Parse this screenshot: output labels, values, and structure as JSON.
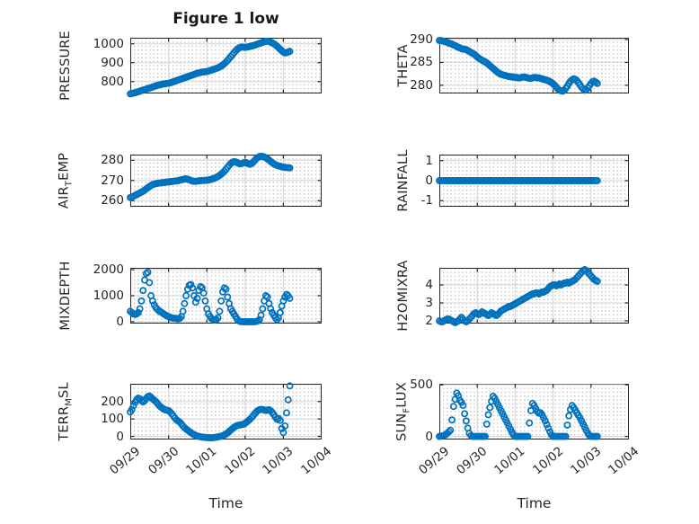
{
  "figure": {
    "title": "Figure 1 low",
    "background": "#ffffff",
    "accent_color": "#0072BD"
  },
  "x_axis": {
    "label": "Time",
    "tick_labels": [
      "09/29",
      "09/30",
      "10/01",
      "10/02",
      "10/03",
      "10/04"
    ]
  },
  "chart_data": [
    {
      "type": "scatter",
      "marker": "open-circle",
      "color": "#0072BD",
      "id": "pressure",
      "row": 0,
      "col": 0,
      "ylabel_parts": [
        {
          "t": "PRESSURE"
        }
      ],
      "yticks": [
        800,
        900,
        1000
      ],
      "ylim": [
        737,
        1032
      ],
      "xlim_days": [
        0,
        5
      ],
      "x_start_day": 0,
      "x_step_days": 0.0416667,
      "values": [
        735,
        737,
        739,
        741,
        744,
        746,
        749,
        752,
        755,
        757,
        760,
        763,
        766,
        768,
        771,
        774,
        777,
        780,
        782,
        784,
        786,
        788,
        789,
        790,
        791,
        793,
        796,
        799,
        802,
        805,
        808,
        811,
        814,
        817,
        820,
        823,
        826,
        829,
        832,
        835,
        838,
        841,
        844,
        846,
        848,
        850,
        851,
        852,
        853,
        855,
        858,
        861,
        864,
        867,
        870,
        873,
        877,
        882,
        888,
        895,
        903,
        912,
        922,
        932,
        942,
        952,
        962,
        970,
        977,
        981,
        983,
        982,
        981,
        982,
        984,
        986,
        988,
        990,
        993,
        996,
        999,
        1002,
        1005,
        1008,
        1011,
        1013,
        1014,
        1012,
        1009,
        1005,
        1000,
        994,
        987,
        979,
        971,
        963,
        956,
        952,
        953,
        956,
        960
      ]
    },
    {
      "type": "scatter",
      "marker": "open-circle",
      "color": "#0072BD",
      "id": "theta",
      "row": 0,
      "col": 1,
      "ylabel_parts": [
        {
          "t": "THETA"
        }
      ],
      "yticks": [
        280,
        285,
        290
      ],
      "ylim": [
        278.2,
        290.4
      ],
      "xlim_days": [
        0,
        5
      ],
      "x_start_day": 0,
      "x_step_days": 0.0416667,
      "values": [
        289.8,
        289.8,
        289.7,
        289.6,
        289.5,
        289.4,
        289.2,
        289.1,
        289.0,
        288.8,
        288.7,
        288.5,
        288.3,
        288.2,
        288.0,
        287.9,
        287.9,
        287.8,
        287.6,
        287.4,
        287.2,
        287.0,
        286.8,
        286.5,
        286.2,
        285.9,
        285.7,
        285.5,
        285.3,
        285.1,
        284.9,
        284.6,
        284.3,
        284.0,
        283.7,
        283.4,
        283.1,
        282.8,
        282.6,
        282.4,
        282.3,
        282.2,
        282.1,
        282.0,
        281.9,
        281.9,
        281.8,
        281.8,
        281.7,
        281.7,
        281.6,
        281.6,
        281.7,
        281.8,
        281.8,
        281.7,
        281.6,
        281.5,
        281.5,
        281.6,
        281.7,
        281.7,
        281.6,
        281.6,
        281.5,
        281.4,
        281.3,
        281.2,
        281.1,
        281.0,
        280.8,
        280.6,
        280.3,
        280.0,
        279.6,
        279.2,
        278.9,
        278.8,
        278.7,
        278.9,
        279.3,
        279.8,
        280.4,
        280.9,
        281.2,
        281.4,
        281.3,
        281.0,
        280.6,
        280.1,
        279.6,
        279.2,
        278.9,
        279.0,
        279.4,
        279.9,
        280.4,
        280.8,
        280.9,
        280.7,
        280.4
      ]
    },
    {
      "type": "scatter",
      "marker": "open-circle",
      "color": "#0072BD",
      "id": "air_temp",
      "row": 1,
      "col": 0,
      "ylabel_parts": [
        {
          "t": "AIR"
        },
        {
          "t": "T",
          "sub": true
        },
        {
          "t": "EMP"
        }
      ],
      "yticks": [
        260,
        270,
        280
      ],
      "ylim": [
        257,
        282.8
      ],
      "xlim_days": [
        0,
        5
      ],
      "x_start_day": 0,
      "x_step_days": 0.0416667,
      "values": [
        261.5,
        261.8,
        262.2,
        262.6,
        263.0,
        263.4,
        263.8,
        264.2,
        264.7,
        265.2,
        265.8,
        266.4,
        267.0,
        267.5,
        267.9,
        268.2,
        268.4,
        268.6,
        268.7,
        268.8,
        268.9,
        269.0,
        269.1,
        269.2,
        269.3,
        269.4,
        269.5,
        269.6,
        269.7,
        269.8,
        269.9,
        270.1,
        270.3,
        270.5,
        270.7,
        270.8,
        270.6,
        270.3,
        270.0,
        269.7,
        269.6,
        269.6,
        269.7,
        269.8,
        269.9,
        270.0,
        270.0,
        270.1,
        270.1,
        270.2,
        270.4,
        270.6,
        270.9,
        271.2,
        271.6,
        272.0,
        272.5,
        273.1,
        273.8,
        274.6,
        275.5,
        276.5,
        277.5,
        278.4,
        279.0,
        279.3,
        279.2,
        278.8,
        278.4,
        278.2,
        278.4,
        278.7,
        278.9,
        278.7,
        278.3,
        278.0,
        278.3,
        279.0,
        279.9,
        280.8,
        281.4,
        281.8,
        282.0,
        281.9,
        281.6,
        281.2,
        280.7,
        280.1,
        279.4,
        278.8,
        278.2,
        277.8,
        277.5,
        277.2,
        277.0,
        276.8,
        276.6,
        276.5,
        276.4,
        276.3,
        276.2
      ]
    },
    {
      "type": "scatter",
      "marker": "open-circle",
      "color": "#0072BD",
      "id": "rainfall",
      "row": 1,
      "col": 1,
      "ylabel_parts": [
        {
          "t": "RAINFALL"
        }
      ],
      "yticks": [
        -1,
        0,
        1
      ],
      "ylim": [
        -1.3,
        1.3
      ],
      "xlim_days": [
        0,
        5
      ],
      "x_start_day": 0,
      "x_step_days": 0.0416667,
      "values": [
        0,
        0,
        0,
        0,
        0,
        0,
        0,
        0,
        0,
        0,
        0,
        0,
        0,
        0,
        0,
        0,
        0,
        0,
        0,
        0,
        0,
        0,
        0,
        0,
        0,
        0,
        0,
        0,
        0,
        0,
        0,
        0,
        0,
        0,
        0,
        0,
        0,
        0,
        0,
        0,
        0,
        0,
        0,
        0,
        0,
        0,
        0,
        0,
        0,
        0,
        0,
        0,
        0,
        0,
        0,
        0,
        0,
        0,
        0,
        0,
        0,
        0,
        0,
        0,
        0,
        0,
        0,
        0,
        0,
        0,
        0,
        0,
        0,
        0,
        0,
        0,
        0,
        0,
        0,
        0,
        0,
        0,
        0,
        0,
        0,
        0,
        0,
        0,
        0,
        0,
        0,
        0,
        0,
        0,
        0,
        0,
        0,
        0,
        0,
        0,
        0
      ]
    },
    {
      "type": "scatter",
      "marker": "open-circle",
      "color": "#0072BD",
      "id": "mixdepth",
      "row": 2,
      "col": 0,
      "ylabel_parts": [
        {
          "t": "MIXDEPTH"
        }
      ],
      "yticks": [
        0,
        1000,
        2000
      ],
      "ylim": [
        -70,
        2070
      ],
      "xlim_days": [
        0,
        5
      ],
      "x_start_day": 0,
      "x_step_days": 0.0416667,
      "values": [
        400,
        350,
        300,
        280,
        300,
        350,
        500,
        800,
        1200,
        1600,
        1850,
        1900,
        1500,
        1000,
        800,
        650,
        550,
        480,
        420,
        380,
        340,
        300,
        260,
        220,
        200,
        170,
        150,
        140,
        130,
        120,
        110,
        130,
        200,
        400,
        700,
        1000,
        1250,
        1400,
        1430,
        1300,
        1000,
        750,
        900,
        1200,
        1350,
        1300,
        1100,
        800,
        500,
        300,
        200,
        120,
        80,
        60,
        80,
        150,
        400,
        800,
        1150,
        1300,
        1250,
        950,
        700,
        500,
        400,
        300,
        200,
        100,
        40,
        10,
        0,
        0,
        0,
        0,
        0,
        0,
        0,
        0,
        0,
        10,
        30,
        80,
        250,
        500,
        800,
        1000,
        950,
        700,
        500,
        350,
        250,
        150,
        80,
        150,
        350,
        600,
        800,
        950,
        1050,
        1000,
        900
      ]
    },
    {
      "type": "scatter",
      "marker": "open-circle",
      "color": "#0072BD",
      "id": "h2omixra",
      "row": 2,
      "col": 1,
      "ylabel_parts": [
        {
          "t": "H2OMIXRA"
        }
      ],
      "yticks": [
        2,
        3,
        4
      ],
      "ylim": [
        1.85,
        4.95
      ],
      "xlim_days": [
        0,
        5
      ],
      "x_start_day": 0,
      "x_step_days": 0.0416667,
      "values": [
        2.0,
        1.95,
        1.95,
        2.0,
        2.05,
        2.1,
        2.1,
        2.05,
        2.0,
        1.95,
        1.9,
        1.95,
        2.0,
        2.1,
        2.2,
        2.1,
        2.0,
        1.95,
        2.0,
        2.1,
        2.2,
        2.3,
        2.4,
        2.45,
        2.4,
        2.35,
        2.4,
        2.5,
        2.45,
        2.4,
        2.35,
        2.3,
        2.35,
        2.45,
        2.4,
        2.35,
        2.3,
        2.35,
        2.45,
        2.55,
        2.6,
        2.65,
        2.7,
        2.75,
        2.8,
        2.8,
        2.85,
        2.9,
        2.95,
        3.0,
        3.05,
        3.1,
        3.15,
        3.2,
        3.25,
        3.3,
        3.35,
        3.4,
        3.45,
        3.5,
        3.5,
        3.55,
        3.55,
        3.5,
        3.55,
        3.6,
        3.6,
        3.65,
        3.7,
        3.8,
        3.9,
        3.95,
        4.0,
        4.0,
        3.95,
        4.0,
        4.05,
        4.0,
        4.05,
        4.1,
        4.1,
        4.15,
        4.1,
        4.15,
        4.2,
        4.25,
        4.3,
        4.4,
        4.5,
        4.6,
        4.7,
        4.8,
        4.85,
        4.8,
        4.7,
        4.6,
        4.5,
        4.4,
        4.3,
        4.25,
        4.2
      ]
    },
    {
      "type": "scatter",
      "marker": "open-circle",
      "color": "#0072BD",
      "id": "terr_msl",
      "row": 3,
      "col": 0,
      "ylabel_parts": [
        {
          "t": "TERR"
        },
        {
          "t": "M",
          "sub": true
        },
        {
          "t": "SL"
        }
      ],
      "yticks": [
        0,
        100,
        200
      ],
      "ylim": [
        -18,
        302
      ],
      "xlim_days": [
        0,
        5
      ],
      "x_start_day": 0,
      "x_step_days": 0.0416667,
      "values": [
        140,
        155,
        175,
        195,
        210,
        220,
        215,
        205,
        198,
        205,
        218,
        228,
        232,
        225,
        215,
        208,
        200,
        190,
        178,
        170,
        163,
        157,
        152,
        150,
        148,
        140,
        130,
        118,
        105,
        95,
        88,
        82,
        72,
        60,
        50,
        42,
        35,
        28,
        22,
        15,
        10,
        5,
        2,
        0,
        -2,
        -4,
        -5,
        -6,
        -7,
        -7,
        -8,
        -8,
        -7,
        -6,
        -5,
        -3,
        -1,
        1,
        4,
        8,
        14,
        20,
        28,
        36,
        44,
        52,
        58,
        62,
        64,
        66,
        68,
        70,
        75,
        82,
        90,
        98,
        108,
        118,
        130,
        140,
        148,
        153,
        155,
        154,
        151,
        149,
        151,
        153,
        147,
        138,
        125,
        110,
        98,
        103,
        92,
        45,
        22,
        60,
        135,
        210,
        290
      ]
    },
    {
      "type": "scatter",
      "marker": "open-circle",
      "color": "#0072BD",
      "id": "sun_flux",
      "row": 3,
      "col": 1,
      "ylabel_parts": [
        {
          "t": "SUN"
        },
        {
          "t": "F",
          "sub": true
        },
        {
          "t": "LUX"
        }
      ],
      "yticks": [
        0,
        500
      ],
      "ylim": [
        -30,
        510
      ],
      "xlim_days": [
        0,
        5
      ],
      "x_start_day": 0,
      "x_step_days": 0.0416667,
      "values": [
        0,
        2,
        5,
        10,
        18,
        30,
        45,
        60,
        160,
        290,
        360,
        420,
        395,
        350,
        330,
        300,
        220,
        150,
        80,
        30,
        8,
        0,
        0,
        0,
        0,
        0,
        0,
        0,
        0,
        0,
        120,
        210,
        280,
        340,
        390,
        370,
        340,
        310,
        280,
        250,
        220,
        190,
        160,
        130,
        100,
        70,
        40,
        15,
        0,
        0,
        0,
        0,
        0,
        0,
        0,
        0,
        0,
        130,
        250,
        320,
        300,
        270,
        240,
        225,
        230,
        210,
        180,
        150,
        115,
        80,
        45,
        15,
        0,
        0,
        0,
        0,
        0,
        0,
        0,
        0,
        0,
        110,
        200,
        260,
        300,
        280,
        255,
        230,
        205,
        180,
        150,
        120,
        90,
        60,
        30,
        10,
        0,
        0,
        0,
        0,
        0
      ]
    }
  ]
}
